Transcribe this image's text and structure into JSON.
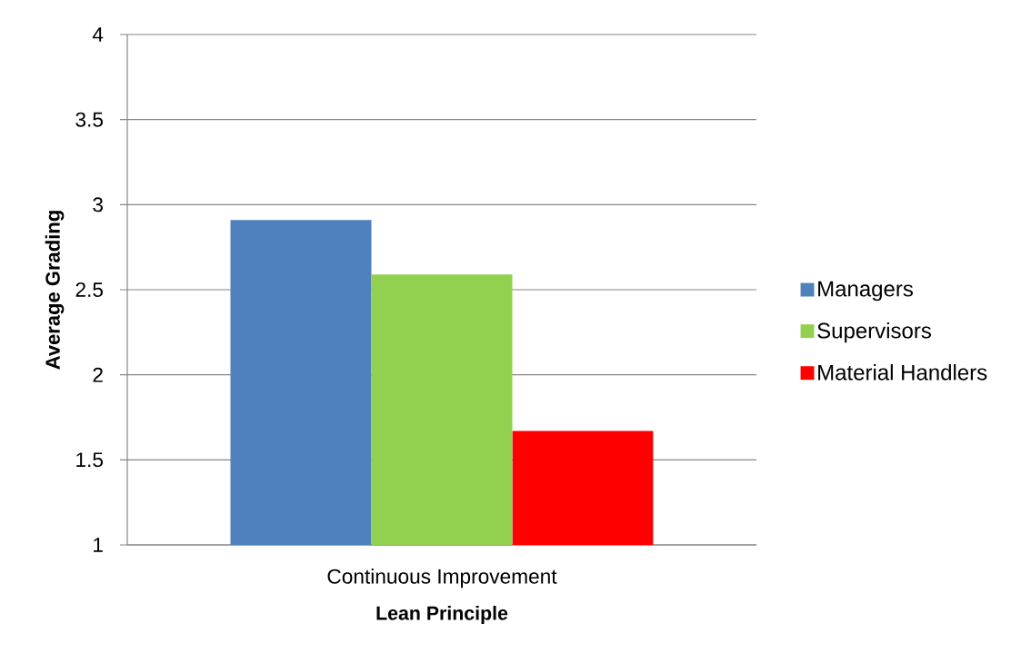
{
  "chart_data": {
    "type": "bar",
    "xlabel": "Lean Principle",
    "ylabel": "Average Grading",
    "categories": [
      "Continuous Improvement"
    ],
    "series": [
      {
        "name": "Managers",
        "color": "#4f81bd",
        "values": [
          2.91
        ]
      },
      {
        "name": "Supervisors",
        "color": "#92d050",
        "values": [
          2.59
        ]
      },
      {
        "name": "Material Handlers",
        "color": "#ff0000",
        "values": [
          1.67
        ]
      }
    ],
    "ylim": [
      1,
      4
    ],
    "yticks": [
      1,
      1.5,
      2,
      2.5,
      3,
      3.5,
      4
    ],
    "grid": "y",
    "legend": "right"
  }
}
